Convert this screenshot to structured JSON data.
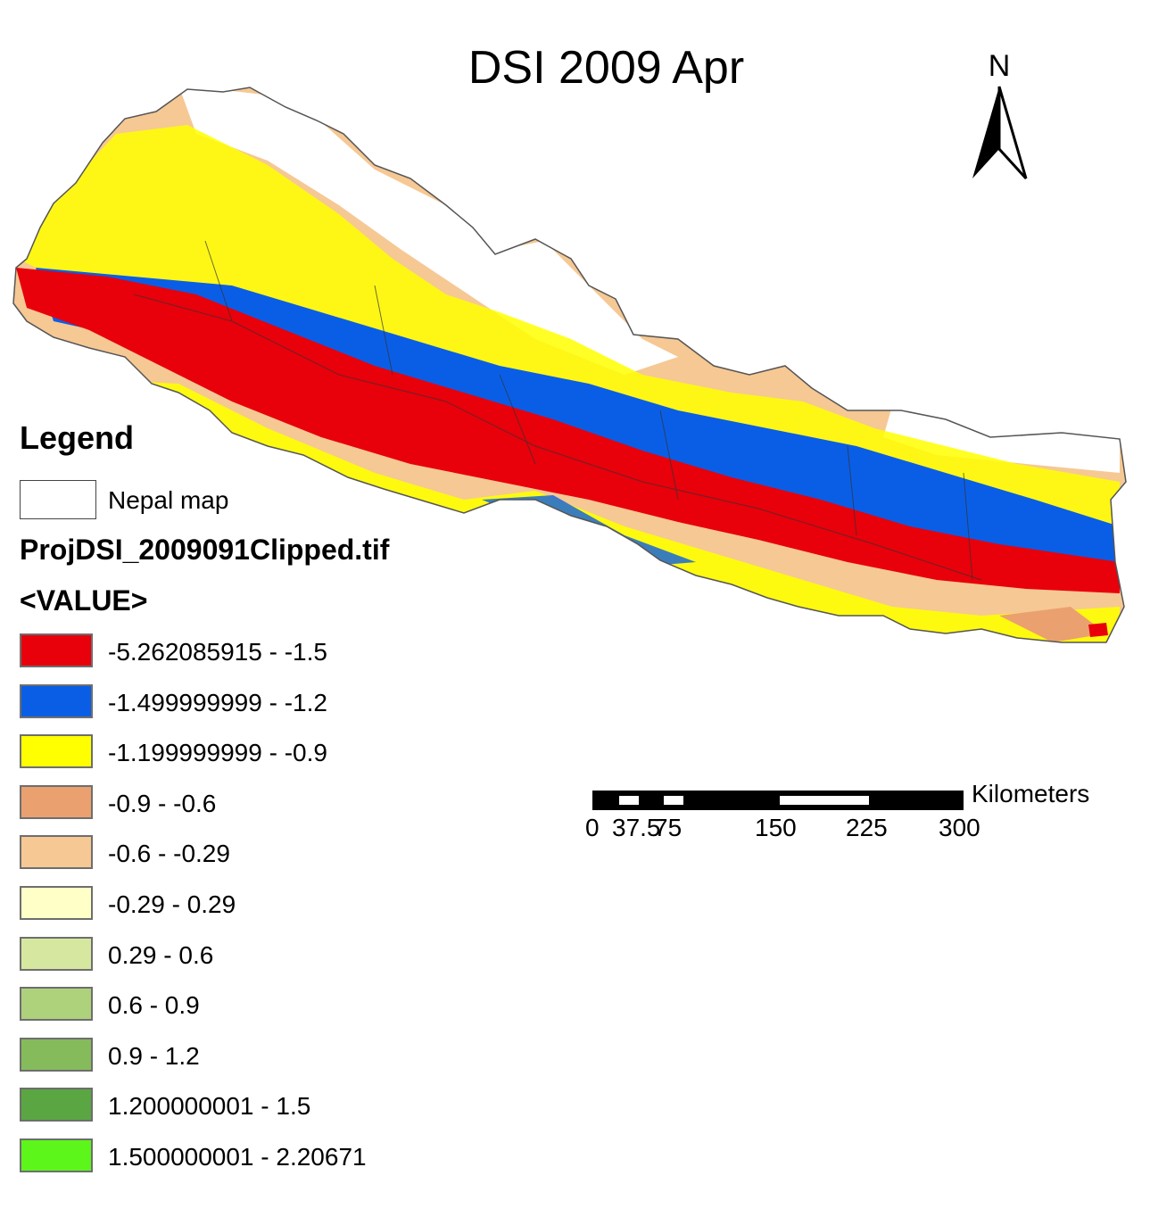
{
  "title": "DSI 2009 Apr",
  "north_arrow": {
    "label": "N"
  },
  "legend": {
    "title": "Legend",
    "boundary": {
      "label": "Nepal map",
      "color": "#ffffff"
    },
    "layer_name": "ProjDSI_2009091Clipped.tif",
    "field": "<VALUE>",
    "classes": [
      {
        "label": "-5.262085915 - -1.5",
        "color": "#e8000b"
      },
      {
        "label": "-1.499999999 - -1.2",
        "color": "#0a5ee6"
      },
      {
        "label": "-1.199999999 - -0.9",
        "color": "#ffff00"
      },
      {
        "label": "-0.9 - -0.6",
        "color": "#eba06f"
      },
      {
        "label": "-0.6 - -0.29",
        "color": "#f6c894"
      },
      {
        "label": "-0.29 - 0.29",
        "color": "#ffffc8"
      },
      {
        "label": "0.29 - 0.6",
        "color": "#d6e8a0"
      },
      {
        "label": "0.6 - 0.9",
        "color": "#aed17c"
      },
      {
        "label": "0.9 - 1.2",
        "color": "#86bb5c"
      },
      {
        "label": "1.200000001 - 1.5",
        "color": "#5aa642"
      },
      {
        "label": "1.500000001 - 2.20671",
        "color": "#5cf61a"
      }
    ]
  },
  "scale_bar": {
    "unit": "Kilometers",
    "ticks": [
      "0",
      "37.5",
      "75",
      "150",
      "225",
      "300"
    ]
  }
}
